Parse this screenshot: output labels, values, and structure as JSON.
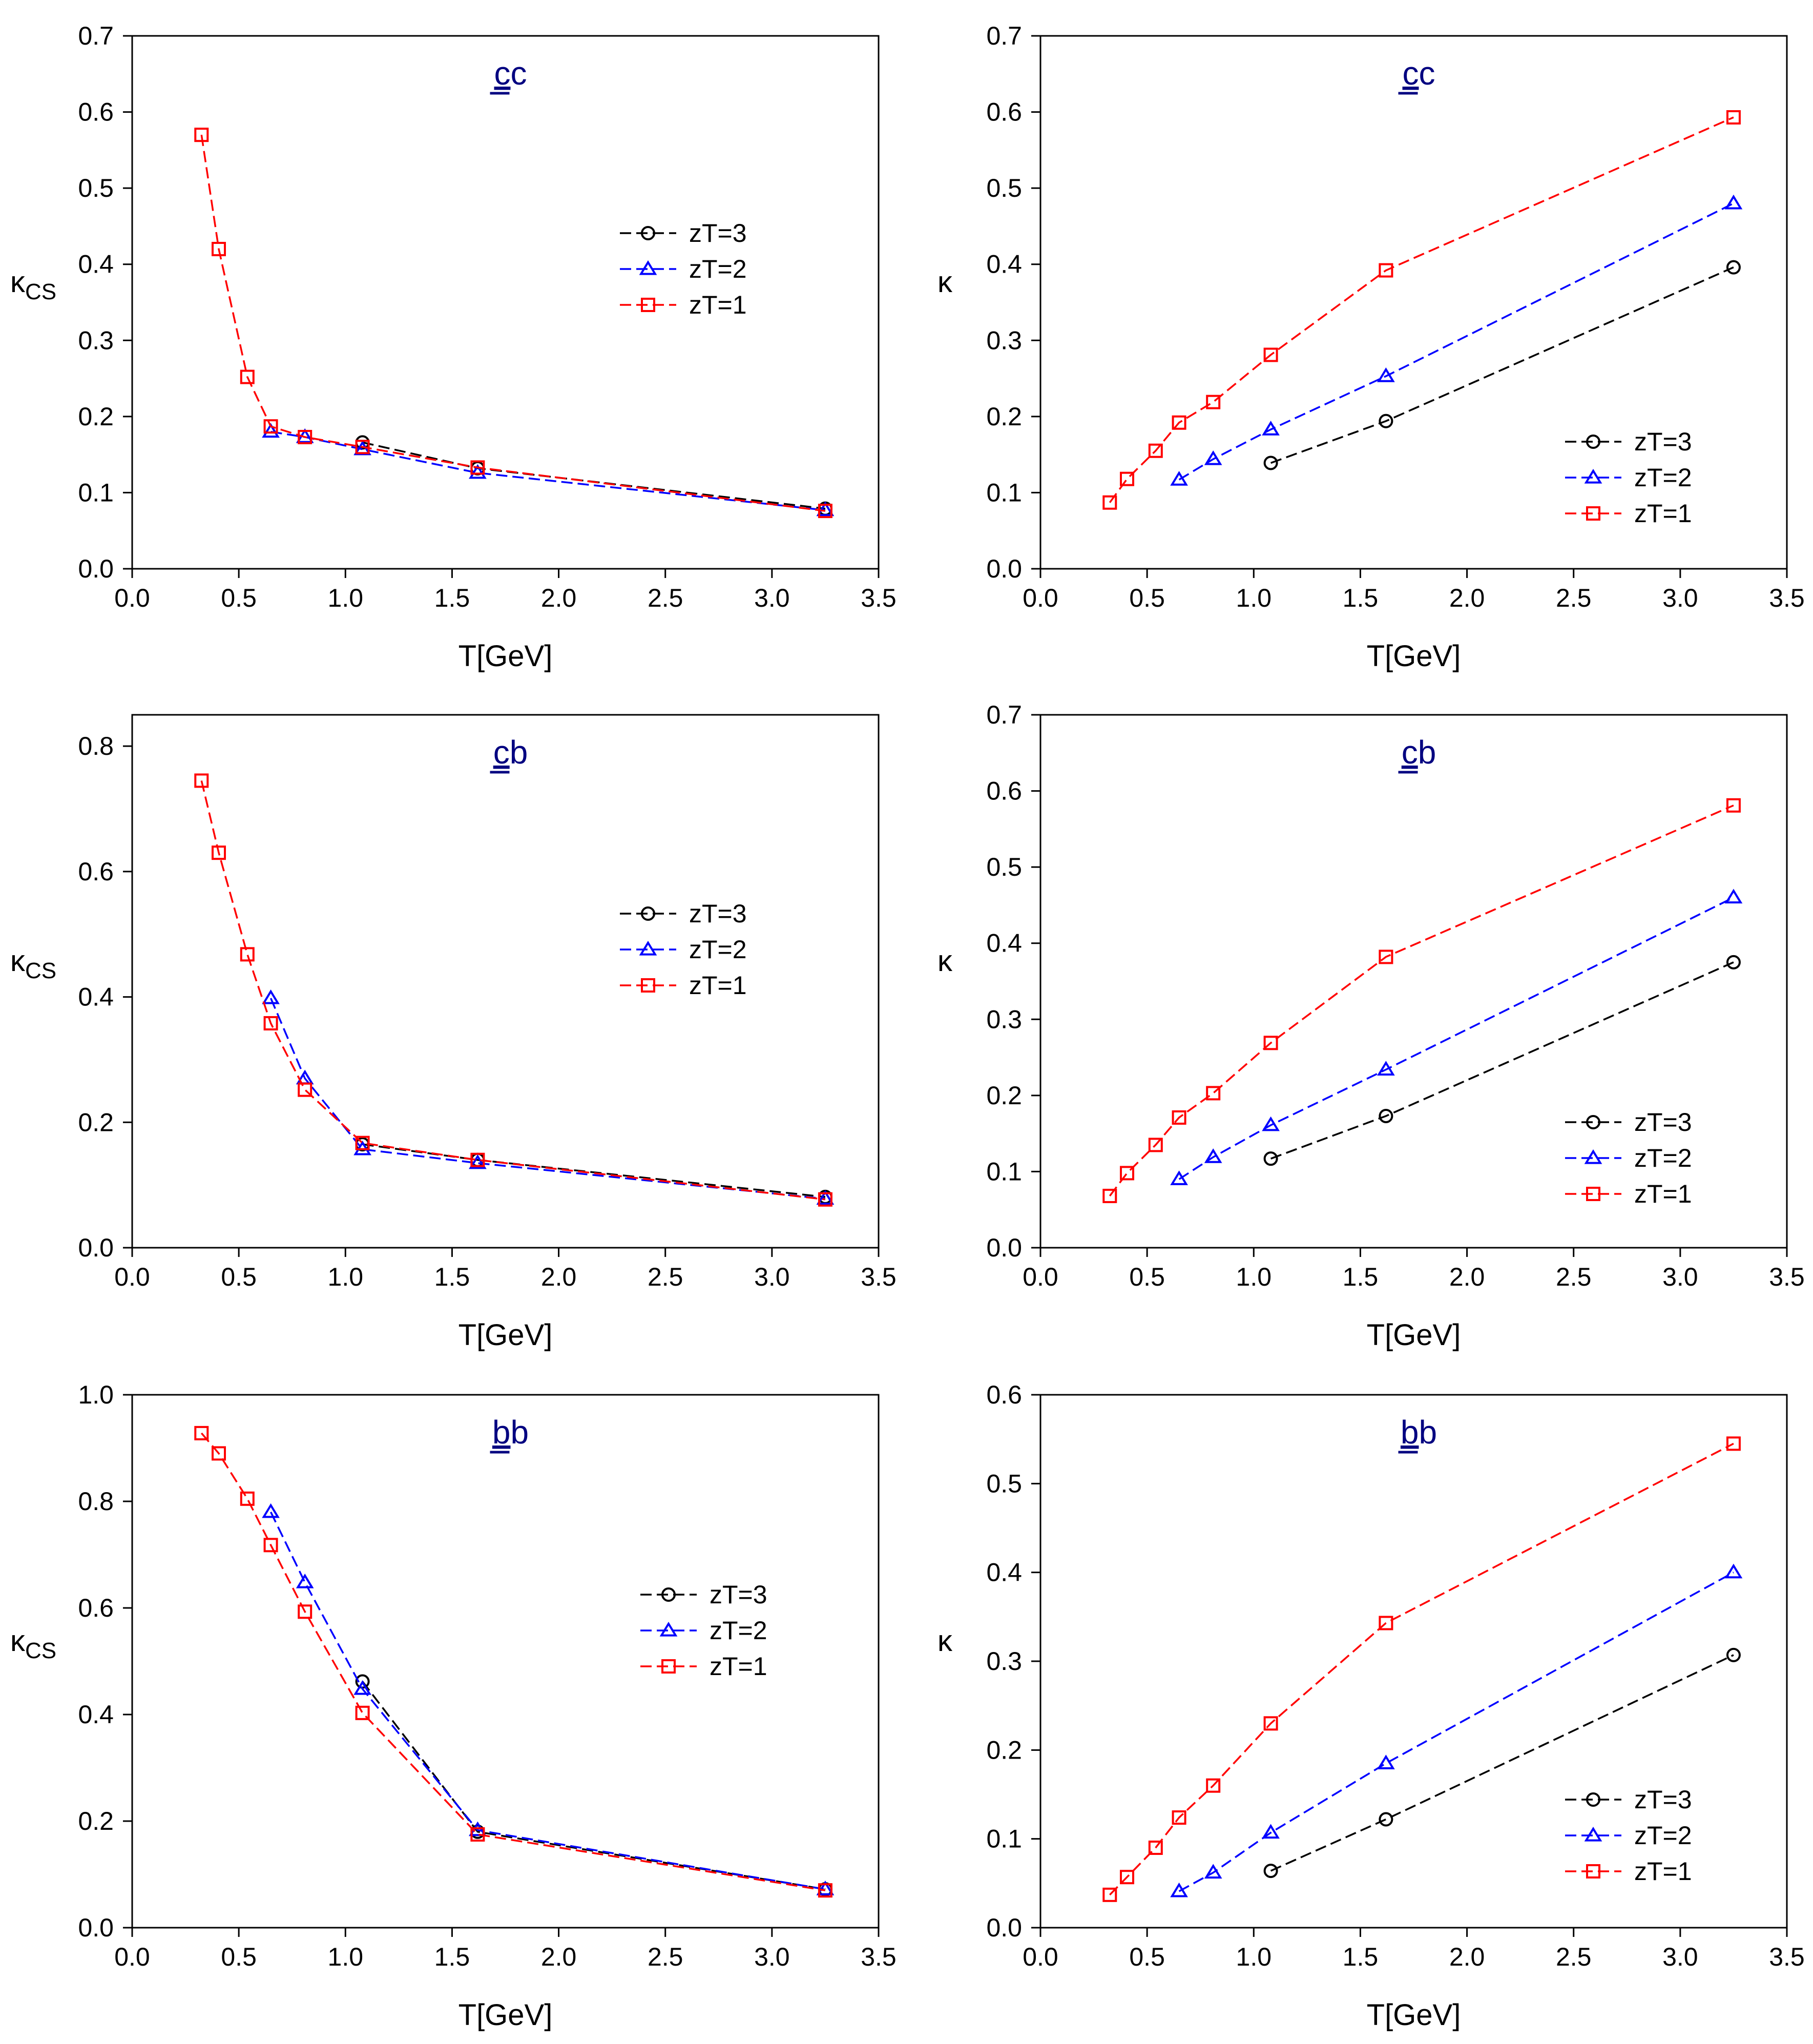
{
  "figure": {
    "title": ""
  },
  "colors": {
    "zT3": "#000000",
    "zT2": "#0000ff",
    "zT1": "#ff0000",
    "label": "#000080"
  },
  "chart_data": [
    {
      "type": "line",
      "title": "cc",
      "title_underline": "c",
      "title_rest": "c",
      "xlabel": "T[GeV]",
      "ylabel": "κ",
      "ylabel_sub": "CS",
      "xlim": [
        0,
        3.5
      ],
      "ylim": [
        0,
        0.7
      ],
      "xticks": [
        0,
        0.5,
        1,
        1.5,
        2,
        2.5,
        3,
        3.5
      ],
      "yticks": [
        0,
        0.1,
        0.2,
        0.3,
        0.4,
        0.5,
        0.6,
        0.7
      ],
      "xtick_labels": [
        "0.0",
        "0.5",
        "1.0",
        "1.5",
        "2.0",
        "2.5",
        "3.0",
        "3.5"
      ],
      "ytick_labels": [
        "0.0",
        "0.1",
        "0.2",
        "0.3",
        "0.4",
        "0.5",
        "0.6",
        "0.7"
      ],
      "legend": {
        "position": "upper-right",
        "entries": [
          "zT=3",
          "zT=2",
          "zT=1"
        ]
      },
      "series": [
        {
          "name": "zT=3",
          "marker": "circle",
          "x": [
            1.08,
            1.62,
            3.25
          ],
          "y": [
            0.166,
            0.132,
            0.079
          ]
        },
        {
          "name": "zT=2",
          "marker": "triangle",
          "x": [
            0.65,
            0.81,
            1.08,
            1.62,
            3.25
          ],
          "y": [
            0.18,
            0.173,
            0.157,
            0.126,
            0.077
          ]
        },
        {
          "name": "zT=1",
          "marker": "square",
          "x": [
            0.325,
            0.406,
            0.54,
            0.65,
            0.81,
            1.08,
            1.62,
            3.25
          ],
          "y": [
            0.57,
            0.42,
            0.252,
            0.187,
            0.173,
            0.16,
            0.133,
            0.076
          ]
        }
      ]
    },
    {
      "type": "line",
      "title": "cc",
      "title_underline": "c",
      "title_rest": "c",
      "xlabel": "T[GeV]",
      "ylabel": "κ",
      "ylabel_sub": "",
      "xlim": [
        0,
        3.5
      ],
      "ylim": [
        0,
        0.7
      ],
      "xticks": [
        0,
        0.5,
        1,
        1.5,
        2,
        2.5,
        3,
        3.5
      ],
      "yticks": [
        0,
        0.1,
        0.2,
        0.3,
        0.4,
        0.5,
        0.6,
        0.7
      ],
      "xtick_labels": [
        "0.0",
        "0.5",
        "1.0",
        "1.5",
        "2.0",
        "2.5",
        "3.0",
        "3.5"
      ],
      "ytick_labels": [
        "0.0",
        "0.1",
        "0.2",
        "0.3",
        "0.4",
        "0.5",
        "0.6",
        "0.7"
      ],
      "legend": {
        "position": "lower-right",
        "entries": [
          "zT=3",
          "zT=2",
          "zT=1"
        ]
      },
      "series": [
        {
          "name": "zT=3",
          "marker": "circle",
          "x": [
            1.08,
            1.62,
            3.25
          ],
          "y": [
            0.139,
            0.194,
            0.396
          ]
        },
        {
          "name": "zT=2",
          "marker": "triangle",
          "x": [
            0.65,
            0.81,
            1.08,
            1.62,
            3.25
          ],
          "y": [
            0.117,
            0.144,
            0.183,
            0.253,
            0.48
          ]
        },
        {
          "name": "zT=1",
          "marker": "square",
          "x": [
            0.325,
            0.406,
            0.54,
            0.65,
            0.81,
            1.08,
            1.62,
            3.25
          ],
          "y": [
            0.087,
            0.118,
            0.155,
            0.192,
            0.219,
            0.281,
            0.392,
            0.593
          ]
        }
      ]
    },
    {
      "type": "line",
      "title": "cb",
      "title_underline": "c",
      "title_rest": "b",
      "xlabel": "T[GeV]",
      "ylabel": "κ",
      "ylabel_sub": "CS",
      "xlim": [
        0,
        3.5
      ],
      "ylim": [
        0,
        0.85
      ],
      "xticks": [
        0,
        0.5,
        1,
        1.5,
        2,
        2.5,
        3,
        3.5
      ],
      "yticks": [
        0,
        0.2,
        0.4,
        0.6,
        0.8
      ],
      "xtick_labels": [
        "0.0",
        "0.5",
        "1.0",
        "1.5",
        "2.0",
        "2.5",
        "3.0",
        "3.5"
      ],
      "ytick_labels": [
        "0.0",
        "0.2",
        "0.4",
        "0.6",
        "0.8"
      ],
      "legend": {
        "position": "upper-right",
        "entries": [
          "zT=3",
          "zT=2",
          "zT=1"
        ]
      },
      "series": [
        {
          "name": "zT=3",
          "marker": "circle",
          "x": [
            1.08,
            1.62,
            3.25
          ],
          "y": [
            0.165,
            0.14,
            0.081
          ]
        },
        {
          "name": "zT=2",
          "marker": "triangle",
          "x": [
            0.65,
            0.81,
            1.08,
            1.62,
            3.25
          ],
          "y": [
            0.398,
            0.27,
            0.157,
            0.135,
            0.078
          ]
        },
        {
          "name": "zT=1",
          "marker": "square",
          "x": [
            0.325,
            0.406,
            0.54,
            0.65,
            0.81,
            1.08,
            1.62,
            3.25
          ],
          "y": [
            0.745,
            0.63,
            0.468,
            0.358,
            0.252,
            0.167,
            0.14,
            0.077
          ]
        }
      ]
    },
    {
      "type": "line",
      "title": "cb",
      "title_underline": "c",
      "title_rest": "b",
      "xlabel": "T[GeV]",
      "ylabel": "κ",
      "ylabel_sub": "",
      "xlim": [
        0,
        3.5
      ],
      "ylim": [
        0,
        0.7
      ],
      "xticks": [
        0,
        0.5,
        1,
        1.5,
        2,
        2.5,
        3,
        3.5
      ],
      "yticks": [
        0,
        0.1,
        0.2,
        0.3,
        0.4,
        0.5,
        0.6,
        0.7
      ],
      "xtick_labels": [
        "0.0",
        "0.5",
        "1.0",
        "1.5",
        "2.0",
        "2.5",
        "3.0",
        "3.5"
      ],
      "ytick_labels": [
        "0.0",
        "0.1",
        "0.2",
        "0.3",
        "0.4",
        "0.5",
        "0.6",
        "0.7"
      ],
      "legend": {
        "position": "lower-right",
        "entries": [
          "zT=3",
          "zT=2",
          "zT=1"
        ]
      },
      "series": [
        {
          "name": "zT=3",
          "marker": "circle",
          "x": [
            1.08,
            1.62,
            3.25
          ],
          "y": [
            0.117,
            0.173,
            0.375
          ]
        },
        {
          "name": "zT=2",
          "marker": "triangle",
          "x": [
            0.65,
            0.81,
            1.08,
            1.62,
            3.25
          ],
          "y": [
            0.09,
            0.119,
            0.161,
            0.234,
            0.46
          ]
        },
        {
          "name": "zT=1",
          "marker": "square",
          "x": [
            0.325,
            0.406,
            0.54,
            0.65,
            0.81,
            1.08,
            1.62,
            3.25
          ],
          "y": [
            0.068,
            0.098,
            0.135,
            0.171,
            0.203,
            0.269,
            0.382,
            0.581
          ]
        }
      ]
    },
    {
      "type": "line",
      "title": "bb",
      "title_underline": "b",
      "title_rest": "b",
      "xlabel": "T[GeV]",
      "ylabel": "κ",
      "ylabel_sub": "CS",
      "xlim": [
        0,
        3.5
      ],
      "ylim": [
        0,
        1.0
      ],
      "xticks": [
        0,
        0.5,
        1,
        1.5,
        2,
        2.5,
        3,
        3.5
      ],
      "yticks": [
        0,
        0.2,
        0.4,
        0.6,
        0.8,
        1.0
      ],
      "xtick_labels": [
        "0.0",
        "0.5",
        "1.0",
        "1.5",
        "2.0",
        "2.5",
        "3.0",
        "3.5"
      ],
      "ytick_labels": [
        "0.0",
        "0.2",
        "0.4",
        "0.6",
        "0.8",
        "1.0"
      ],
      "legend": {
        "position": "right",
        "entries": [
          "zT=3",
          "zT=2",
          "zT=1"
        ]
      },
      "series": [
        {
          "name": "zT=3",
          "marker": "circle",
          "x": [
            1.08,
            1.62,
            3.25
          ],
          "y": [
            0.462,
            0.18,
            0.072
          ]
        },
        {
          "name": "zT=2",
          "marker": "triangle",
          "x": [
            0.65,
            0.81,
            1.08,
            1.62,
            3.25
          ],
          "y": [
            0.78,
            0.648,
            0.448,
            0.183,
            0.072
          ]
        },
        {
          "name": "zT=1",
          "marker": "square",
          "x": [
            0.325,
            0.406,
            0.54,
            0.65,
            0.81,
            1.08,
            1.62,
            3.25
          ],
          "y": [
            0.928,
            0.89,
            0.805,
            0.718,
            0.593,
            0.403,
            0.175,
            0.07
          ]
        }
      ]
    },
    {
      "type": "line",
      "title": "bb",
      "title_underline": "b",
      "title_rest": "b",
      "xlabel": "T[GeV]",
      "ylabel": "κ",
      "ylabel_sub": "",
      "xlim": [
        0,
        3.5
      ],
      "ylim": [
        0,
        0.6
      ],
      "xticks": [
        0,
        0.5,
        1,
        1.5,
        2,
        2.5,
        3,
        3.5
      ],
      "yticks": [
        0,
        0.1,
        0.2,
        0.3,
        0.4,
        0.5,
        0.6
      ],
      "xtick_labels": [
        "0.0",
        "0.5",
        "1.0",
        "1.5",
        "2.0",
        "2.5",
        "3.0",
        "3.5"
      ],
      "ytick_labels": [
        "0.0",
        "0.1",
        "0.2",
        "0.3",
        "0.4",
        "0.5",
        "0.6"
      ],
      "legend": {
        "position": "lower-right",
        "entries": [
          "zT=3",
          "zT=2",
          "zT=1"
        ]
      },
      "series": [
        {
          "name": "zT=3",
          "marker": "circle",
          "x": [
            1.08,
            1.62,
            3.25
          ],
          "y": [
            0.064,
            0.122,
            0.307
          ]
        },
        {
          "name": "zT=2",
          "marker": "triangle",
          "x": [
            0.65,
            0.81,
            1.08,
            1.62,
            3.25
          ],
          "y": [
            0.041,
            0.062,
            0.107,
            0.185,
            0.4
          ]
        },
        {
          "name": "zT=1",
          "marker": "square",
          "x": [
            0.325,
            0.406,
            0.54,
            0.65,
            0.81,
            1.08,
            1.62,
            3.25
          ],
          "y": [
            0.037,
            0.057,
            0.09,
            0.124,
            0.16,
            0.23,
            0.343,
            0.545
          ]
        }
      ]
    }
  ]
}
